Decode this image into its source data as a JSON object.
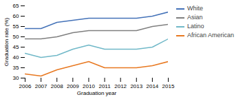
{
  "chart_data": {
    "type": "line",
    "x": [
      2006,
      2007,
      2008,
      2009,
      2010,
      2011,
      2012,
      2013,
      2014,
      2015
    ],
    "series": [
      {
        "name": "White",
        "color": "#4472b8",
        "values": [
          54,
          54,
          57,
          58,
          59,
          59,
          59,
          59,
          60,
          62
        ]
      },
      {
        "name": "Asian",
        "color": "#7f7f7f",
        "values": [
          49,
          49,
          50,
          52,
          53,
          53,
          53,
          53,
          55,
          56
        ]
      },
      {
        "name": "Latino",
        "color": "#70b8c8",
        "values": [
          42,
          40,
          41,
          44,
          46,
          44,
          44,
          44,
          45,
          49
        ]
      },
      {
        "name": "African American",
        "color": "#e87820",
        "values": [
          32,
          31,
          34,
          36,
          38,
          35,
          35,
          35,
          36,
          38
        ]
      }
    ],
    "xlabel": "Graduation year",
    "ylabel": "Graduation rate (%)",
    "xlim": [
      2006,
      2015
    ],
    "xticks": [
      2006,
      2007,
      2008,
      2009,
      2010,
      2011,
      2012,
      2013,
      2014,
      2015
    ],
    "ylim": [
      30,
      65
    ],
    "yticks": [
      30,
      35,
      40,
      45,
      50,
      55,
      60,
      65
    ],
    "grid": false,
    "legend": "right"
  }
}
